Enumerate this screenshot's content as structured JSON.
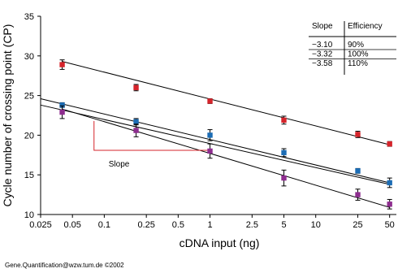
{
  "chart_data": {
    "type": "scatter",
    "title": "",
    "xlabel": "cDNA input (ng)",
    "ylabel": "Cycle number of crossing point (CP)",
    "x_scale": "log",
    "xlim": [
      0.025,
      60
    ],
    "ylim": [
      10,
      35
    ],
    "x_ticks": [
      "0.025",
      "0.05",
      "0.1",
      "0.25",
      "0.5",
      "1",
      "2.5",
      "5",
      "10",
      "25",
      "50"
    ],
    "x_tick_values": [
      0.025,
      0.05,
      0.1,
      0.25,
      0.5,
      1,
      2.5,
      5,
      10,
      25,
      50
    ],
    "y_ticks": [
      "10",
      "15",
      "20",
      "25",
      "30",
      "35"
    ],
    "y_tick_values": [
      10,
      15,
      20,
      25,
      30,
      35
    ],
    "grid": false,
    "series": [
      {
        "color": "#d6242b",
        "x": [
          0.04,
          0.2,
          1,
          5,
          25,
          50
        ],
        "y": [
          28.9,
          26.0,
          24.3,
          21.9,
          20.1,
          18.9
        ],
        "err": [
          0.6,
          0.4,
          0.3,
          0.5,
          0.4,
          0.3
        ]
      },
      {
        "color": "#1c6db5",
        "x": [
          0.04,
          0.2,
          1,
          5,
          25,
          50
        ],
        "y": [
          23.8,
          21.7,
          20.0,
          17.8,
          15.5,
          14.0
        ],
        "err": [
          0.3,
          0.4,
          0.7,
          0.5,
          0.3,
          0.6
        ]
      },
      {
        "color": "#8e2d8f",
        "x": [
          0.04,
          0.2,
          1,
          5,
          25,
          50
        ],
        "y": [
          22.9,
          20.6,
          18.0,
          14.6,
          12.5,
          11.3
        ],
        "err": [
          0.8,
          0.8,
          0.9,
          1.0,
          0.7,
          0.6
        ]
      }
    ],
    "fit_lines": [
      {
        "x": [
          0.04,
          50
        ],
        "y": [
          29.3,
          18.8
        ]
      },
      {
        "x": [
          0.025,
          50
        ],
        "y": [
          24.6,
          14.0
        ]
      },
      {
        "x": [
          0.025,
          50
        ],
        "y": [
          23.8,
          13.8
        ]
      },
      {
        "x": [
          0.04,
          50
        ],
        "y": [
          23.3,
          10.9
        ]
      }
    ],
    "slope_annotation": {
      "label": "Slope",
      "x0": 0.08,
      "x1": 1,
      "y0": 21.8,
      "y1": 18.1,
      "color": "#d6242b"
    },
    "table": {
      "headers": [
        "Slope",
        "Efficiency"
      ],
      "rows": [
        [
          "−3.10",
          "90%"
        ],
        [
          "−3.32",
          "100%"
        ],
        [
          "−3.58",
          "110%"
        ]
      ]
    },
    "footer": "Gene.Quantification@wzw.tum.de  ©2002"
  }
}
